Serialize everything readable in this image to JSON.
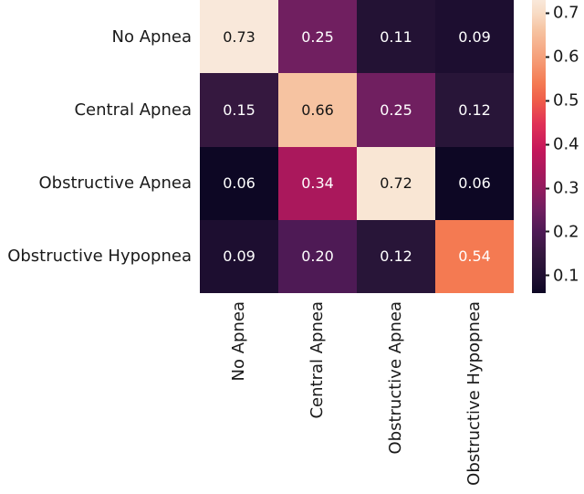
{
  "figure": {
    "background": "#ffffff"
  },
  "colors": {
    "axis_text": "#1a1a1a",
    "cell_text_light": "#ffffff",
    "cell_text_dark": "#151515",
    "tick_mark": "#1a1a1a"
  },
  "chart_data": {
    "type": "heatmap",
    "title": "",
    "xlabel": "",
    "ylabel": "",
    "colormap": "rocket",
    "vmin": 0.06,
    "vmax": 0.73,
    "row_labels": [
      "No Apnea",
      "Central Apnea",
      "Obstructive Apnea",
      "Obstructive Hypopnea"
    ],
    "col_labels": [
      "No Apnea",
      "Central Apnea",
      "Obstructive Apnea",
      "Obstructive Hypopnea"
    ],
    "matrix": [
      [
        "0.73",
        "0.25",
        "0.11",
        "0.09"
      ],
      [
        "0.15",
        "0.66",
        "0.25",
        "0.12"
      ],
      [
        "0.06",
        "0.34",
        "0.72",
        "0.06"
      ],
      [
        "0.09",
        "0.20",
        "0.12",
        "0.54"
      ]
    ],
    "cell_colors": [
      [
        "#f9e8da",
        "#701f60",
        "#231234",
        "#1d0e30"
      ],
      [
        "#35183f",
        "#f6c3a1",
        "#701f60",
        "#281538"
      ],
      [
        "#0d0724",
        "#aa185c",
        "#f9e6d4",
        "#0d0724"
      ],
      [
        "#1d0e30",
        "#4e1a55",
        "#281538",
        "#f47a52"
      ]
    ],
    "colorbar": {
      "tick_labels": [
        "0.7",
        "0.6",
        "0.5",
        "0.4",
        "0.3",
        "0.2",
        "0.1"
      ],
      "gradient_stops": [
        {
          "color": "#0d0724",
          "pos": 0
        },
        {
          "color": "#1d0e30",
          "pos": 4.5
        },
        {
          "color": "#35183f",
          "pos": 13.4
        },
        {
          "color": "#4e1a55",
          "pos": 20.9
        },
        {
          "color": "#701f60",
          "pos": 28.4
        },
        {
          "color": "#8d1c5f",
          "pos": 34.5
        },
        {
          "color": "#aa185c",
          "pos": 41.8
        },
        {
          "color": "#c6175b",
          "pos": 49.0
        },
        {
          "color": "#e13256",
          "pos": 58.0
        },
        {
          "color": "#ef5c49",
          "pos": 65.5
        },
        {
          "color": "#f47a52",
          "pos": 71.6
        },
        {
          "color": "#f59a74",
          "pos": 79.0
        },
        {
          "color": "#f6c3a1",
          "pos": 89.6
        },
        {
          "color": "#f8dcc5",
          "pos": 95.5
        },
        {
          "color": "#f9e8da",
          "pos": 100
        }
      ]
    }
  }
}
